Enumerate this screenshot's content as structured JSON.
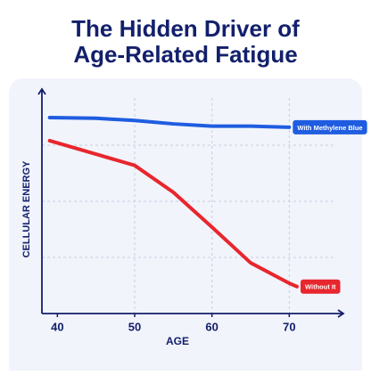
{
  "chart_data": {
    "type": "line",
    "title": [
      "The Hidden Driver of",
      "Age-Related Fatigue"
    ],
    "x_label": "AGE",
    "y_label": "CELLULAR ENERGY",
    "x": [
      39,
      45,
      50,
      55,
      60,
      65,
      70,
      71
    ],
    "series": [
      {
        "name": "With Methylene Blue",
        "color": "#1f5de0",
        "values": [
          87.3,
          87,
          86,
          84.5,
          83.5,
          83.5,
          83,
          null
        ]
      },
      {
        "name": "Without It",
        "color": "#e8262d",
        "values": [
          77,
          71,
          66,
          54,
          38.5,
          22.6,
          13.5,
          12
        ]
      }
    ],
    "xlim": [
      38,
      77
    ],
    "xticks": [
      40,
      50,
      60,
      70
    ],
    "ylim": [
      0,
      100
    ],
    "ygrid": [
      25,
      50,
      75
    ],
    "grid": true
  }
}
